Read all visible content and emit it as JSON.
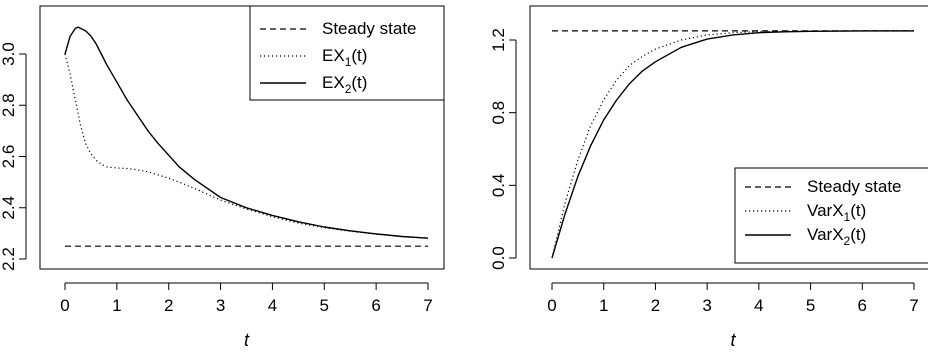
{
  "chart_data": [
    {
      "type": "line",
      "xlabel": "t",
      "ylabel": "",
      "xlim": [
        0,
        7
      ],
      "ylim": [
        2.2,
        3.12
      ],
      "xticks": [
        "0",
        "1",
        "2",
        "3",
        "4",
        "5",
        "6",
        "7"
      ],
      "yticks": [
        "2.2",
        "2.4",
        "2.6",
        "2.8",
        "3.0"
      ],
      "legend_position": "top-right",
      "series": [
        {
          "name": "Steady state",
          "name_base": "Steady state",
          "name_sub": "",
          "name_suffix": "",
          "style": "dashed",
          "x": [
            0,
            7
          ],
          "y": [
            2.25,
            2.25
          ]
        },
        {
          "name": "EX1(t)",
          "name_base": "EX",
          "name_sub": "1",
          "name_suffix": "(t)",
          "style": "dotted",
          "x": [
            0,
            0.1,
            0.2,
            0.3,
            0.4,
            0.5,
            0.6,
            0.7,
            0.8,
            1.0,
            1.2,
            1.4,
            1.6,
            1.8,
            2.0,
            2.2,
            2.5,
            3.0,
            3.5,
            4.0,
            4.5,
            5.0,
            5.5,
            6.0,
            6.5,
            7.0
          ],
          "y": [
            3.0,
            2.92,
            2.82,
            2.72,
            2.65,
            2.61,
            2.585,
            2.57,
            2.56,
            2.555,
            2.553,
            2.548,
            2.54,
            2.528,
            2.515,
            2.5,
            2.475,
            2.43,
            2.395,
            2.365,
            2.34,
            2.322,
            2.308,
            2.297,
            2.288,
            2.281
          ]
        },
        {
          "name": "EX2(t)",
          "name_base": "EX",
          "name_sub": "2",
          "name_suffix": "(t)",
          "style": "solid",
          "x": [
            0,
            0.1,
            0.2,
            0.25,
            0.3,
            0.4,
            0.5,
            0.6,
            0.7,
            0.8,
            1.0,
            1.2,
            1.4,
            1.6,
            1.8,
            2.0,
            2.2,
            2.5,
            3.0,
            3.5,
            4.0,
            4.5,
            5.0,
            5.5,
            6.0,
            6.5,
            7.0
          ],
          "y": [
            3.0,
            3.07,
            3.1,
            3.105,
            3.1,
            3.09,
            3.07,
            3.04,
            3.0,
            2.96,
            2.89,
            2.82,
            2.76,
            2.7,
            2.65,
            2.605,
            2.56,
            2.51,
            2.44,
            2.4,
            2.37,
            2.345,
            2.325,
            2.31,
            2.298,
            2.288,
            2.281
          ]
        }
      ]
    },
    {
      "type": "line",
      "xlabel": "t",
      "ylabel": "",
      "xlim": [
        0,
        7
      ],
      "ylim": [
        -0.05,
        1.44
      ],
      "xticks": [
        "0",
        "1",
        "2",
        "3",
        "4",
        "5",
        "6",
        "7"
      ],
      "yticks": [
        "0.0",
        "0.4",
        "0.8",
        "1.2"
      ],
      "legend_position": "bottom-right",
      "series": [
        {
          "name": "Steady state",
          "name_base": "Steady state",
          "name_sub": "",
          "name_suffix": "",
          "style": "dashed",
          "x": [
            0,
            7
          ],
          "y": [
            1.25,
            1.25
          ]
        },
        {
          "name": "VarX1(t)",
          "name_base": "VarX",
          "name_sub": "1",
          "name_suffix": "(t)",
          "style": "dotted",
          "x": [
            0,
            0.25,
            0.5,
            0.75,
            1.0,
            1.25,
            1.5,
            1.75,
            2.0,
            2.5,
            3.0,
            3.5,
            4.0,
            4.5,
            5.0,
            6.0,
            7.0
          ],
          "y": [
            0.0,
            0.3,
            0.54,
            0.73,
            0.87,
            0.98,
            1.06,
            1.11,
            1.15,
            1.2,
            1.228,
            1.24,
            1.246,
            1.248,
            1.249,
            1.25,
            1.25
          ]
        },
        {
          "name": "VarX2(t)",
          "name_base": "VarX",
          "name_sub": "2",
          "name_suffix": "(t)",
          "style": "solid",
          "x": [
            0,
            0.25,
            0.5,
            0.75,
            1.0,
            1.25,
            1.5,
            1.75,
            2.0,
            2.5,
            3.0,
            3.5,
            4.0,
            4.5,
            5.0,
            6.0,
            7.0
          ],
          "y": [
            0.0,
            0.24,
            0.45,
            0.62,
            0.76,
            0.87,
            0.96,
            1.03,
            1.08,
            1.16,
            1.205,
            1.228,
            1.24,
            1.245,
            1.248,
            1.25,
            1.25
          ]
        }
      ]
    }
  ]
}
